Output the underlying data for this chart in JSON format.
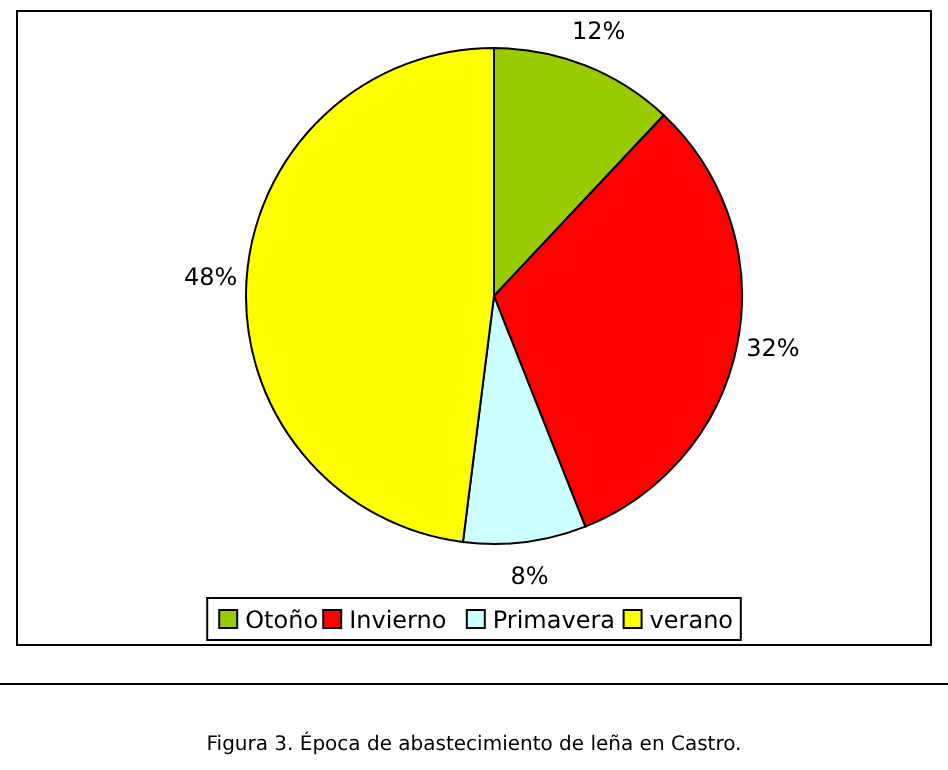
{
  "chart_data": {
    "type": "pie",
    "categories": [
      "Otoño",
      "Invierno",
      "Primavera",
      "verano"
    ],
    "values": [
      12,
      32,
      8,
      48
    ],
    "colors": [
      "#99cc00",
      "#ff0000",
      "#ccffff",
      "#ffff00"
    ],
    "value_labels": [
      "12%",
      "32%",
      "8%",
      "48%"
    ],
    "legend": "bottom",
    "annotations": [
      "Figura 3. Época de abastecimiento de leña en Castro."
    ]
  }
}
